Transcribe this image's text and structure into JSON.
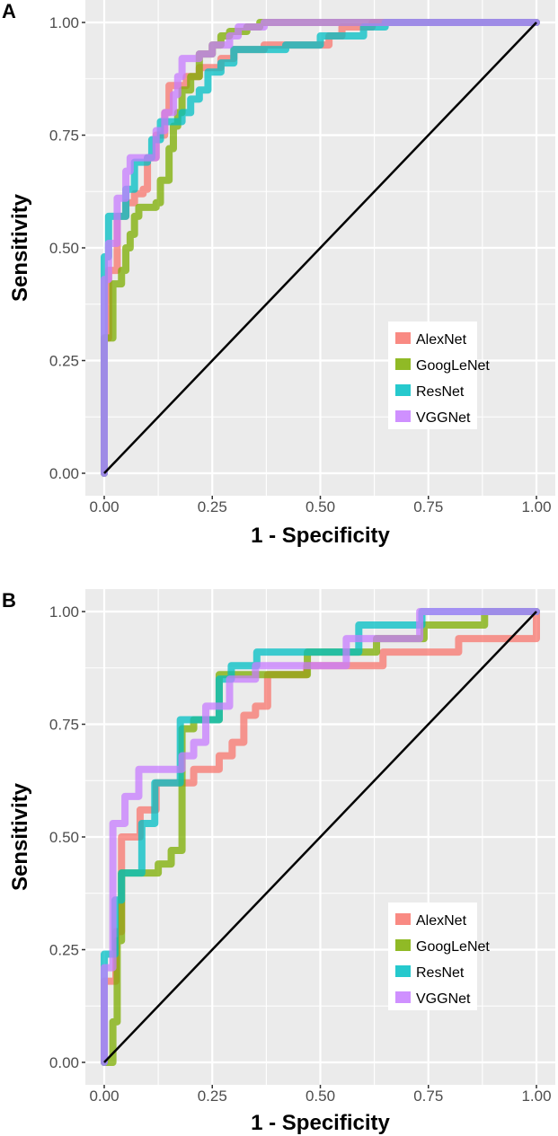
{
  "chart_data": [
    {
      "type": "line",
      "panel_label": "A",
      "xlabel": "1 - Specificity",
      "ylabel": "Sensitivity",
      "xlim": [
        0,
        1
      ],
      "ylim": [
        0,
        1
      ],
      "xticks": [
        "0.00",
        "0.25",
        "0.50",
        "0.75",
        "1.00"
      ],
      "yticks": [
        "0.00",
        "0.25",
        "0.50",
        "0.75",
        "1.00"
      ],
      "grid": true,
      "legend_position": "bottom-right",
      "reference_line": [
        [
          0,
          0
        ],
        [
          1,
          1
        ]
      ],
      "series": [
        {
          "name": "AlexNet",
          "color": "#F8766D",
          "points": [
            [
              0,
              0
            ],
            [
              0,
              0.3
            ],
            [
              0.01,
              0.45
            ],
            [
              0.03,
              0.5
            ],
            [
              0.03,
              0.57
            ],
            [
              0.05,
              0.6
            ],
            [
              0.07,
              0.62
            ],
            [
              0.09,
              0.63
            ],
            [
              0.1,
              0.7
            ],
            [
              0.12,
              0.75
            ],
            [
              0.14,
              0.8
            ],
            [
              0.15,
              0.86
            ],
            [
              0.17,
              0.86
            ],
            [
              0.19,
              0.88
            ],
            [
              0.22,
              0.9
            ],
            [
              0.27,
              0.92
            ],
            [
              0.3,
              0.94
            ],
            [
              0.37,
              0.95
            ],
            [
              0.52,
              0.97
            ],
            [
              0.55,
              0.99
            ],
            [
              0.62,
              1
            ],
            [
              1,
              1
            ]
          ]
        },
        {
          "name": "GoogLeNet",
          "color": "#7CAE00",
          "points": [
            [
              0,
              0
            ],
            [
              0,
              0.3
            ],
            [
              0.02,
              0.32
            ],
            [
              0.02,
              0.42
            ],
            [
              0.04,
              0.45
            ],
            [
              0.05,
              0.5
            ],
            [
              0.06,
              0.53
            ],
            [
              0.07,
              0.57
            ],
            [
              0.08,
              0.59
            ],
            [
              0.12,
              0.6
            ],
            [
              0.13,
              0.65
            ],
            [
              0.15,
              0.72
            ],
            [
              0.16,
              0.77
            ],
            [
              0.17,
              0.8
            ],
            [
              0.18,
              0.85
            ],
            [
              0.2,
              0.88
            ],
            [
              0.22,
              0.93
            ],
            [
              0.25,
              0.95
            ],
            [
              0.27,
              0.97
            ],
            [
              0.29,
              0.98
            ],
            [
              0.33,
              0.99
            ],
            [
              0.36,
              1
            ],
            [
              1,
              1
            ]
          ]
        },
        {
          "name": "ResNet",
          "color": "#00BFC4",
          "points": [
            [
              0,
              0
            ],
            [
              0,
              0.48
            ],
            [
              0.01,
              0.5
            ],
            [
              0.01,
              0.57
            ],
            [
              0.05,
              0.57
            ],
            [
              0.05,
              0.63
            ],
            [
              0.07,
              0.69
            ],
            [
              0.1,
              0.7
            ],
            [
              0.11,
              0.74
            ],
            [
              0.13,
              0.78
            ],
            [
              0.18,
              0.8
            ],
            [
              0.2,
              0.83
            ],
            [
              0.22,
              0.85
            ],
            [
              0.24,
              0.89
            ],
            [
              0.27,
              0.91
            ],
            [
              0.3,
              0.94
            ],
            [
              0.39,
              0.94
            ],
            [
              0.42,
              0.95
            ],
            [
              0.5,
              0.97
            ],
            [
              0.6,
              0.99
            ],
            [
              0.65,
              1
            ],
            [
              1,
              1
            ]
          ]
        },
        {
          "name": "VGGNet",
          "color": "#C77CFF",
          "points": [
            [
              0,
              0
            ],
            [
              0,
              0.43
            ],
            [
              0.01,
              0.51
            ],
            [
              0.03,
              0.61
            ],
            [
              0.05,
              0.67
            ],
            [
              0.06,
              0.7
            ],
            [
              0.1,
              0.7
            ],
            [
              0.12,
              0.76
            ],
            [
              0.14,
              0.8
            ],
            [
              0.16,
              0.84
            ],
            [
              0.17,
              0.88
            ],
            [
              0.18,
              0.92
            ],
            [
              0.22,
              0.93
            ],
            [
              0.25,
              0.95
            ],
            [
              0.29,
              0.97
            ],
            [
              0.31,
              0.99
            ],
            [
              0.37,
              1
            ],
            [
              1,
              1
            ]
          ]
        }
      ]
    },
    {
      "type": "line",
      "panel_label": "B",
      "xlabel": "1 - Specificity",
      "ylabel": "Sensitivity",
      "xlim": [
        0,
        1
      ],
      "ylim": [
        0,
        1
      ],
      "xticks": [
        "0.00",
        "0.25",
        "0.50",
        "0.75",
        "1.00"
      ],
      "yticks": [
        "0.00",
        "0.25",
        "0.50",
        "0.75",
        "1.00"
      ],
      "grid": true,
      "legend_position": "bottom-right",
      "reference_line": [
        [
          0,
          0
        ],
        [
          1,
          1
        ]
      ],
      "series": [
        {
          "name": "AlexNet",
          "color": "#F8766D",
          "points": [
            [
              0,
              0
            ],
            [
              0,
              0.18
            ],
            [
              0.027,
              0.18
            ],
            [
              0.027,
              0.29
            ],
            [
              0.04,
              0.29
            ],
            [
              0.04,
              0.5
            ],
            [
              0.06,
              0.5
            ],
            [
              0.083,
              0.56
            ],
            [
              0.12,
              0.59
            ],
            [
              0.12,
              0.62
            ],
            [
              0.207,
              0.62
            ],
            [
              0.207,
              0.65
            ],
            [
              0.266,
              0.68
            ],
            [
              0.296,
              0.71
            ],
            [
              0.323,
              0.77
            ],
            [
              0.35,
              0.79
            ],
            [
              0.378,
              0.86
            ],
            [
              0.468,
              0.88
            ],
            [
              0.645,
              0.91
            ],
            [
              0.82,
              0.94
            ],
            [
              1,
              0.94
            ],
            [
              1,
              1
            ]
          ]
        },
        {
          "name": "GoogLeNet",
          "color": "#7CAE00",
          "points": [
            [
              0,
              0
            ],
            [
              0.02,
              0.09
            ],
            [
              0.03,
              0.27
            ],
            [
              0.04,
              0.27
            ],
            [
              0.04,
              0.42
            ],
            [
              0.125,
              0.42
            ],
            [
              0.125,
              0.44
            ],
            [
              0.155,
              0.47
            ],
            [
              0.18,
              0.47
            ],
            [
              0.18,
              0.74
            ],
            [
              0.207,
              0.76
            ],
            [
              0.266,
              0.86
            ],
            [
              0.47,
              0.86
            ],
            [
              0.47,
              0.91
            ],
            [
              0.63,
              0.91
            ],
            [
              0.63,
              0.94
            ],
            [
              0.74,
              0.94
            ],
            [
              0.74,
              0.97
            ],
            [
              0.88,
              0.97
            ],
            [
              0.88,
              1
            ],
            [
              1,
              1
            ]
          ]
        },
        {
          "name": "ResNet",
          "color": "#00BFC4",
          "points": [
            [
              0,
              0
            ],
            [
              0,
              0.24
            ],
            [
              0.025,
              0.24
            ],
            [
              0.025,
              0.36
            ],
            [
              0.04,
              0.36
            ],
            [
              0.04,
              0.42
            ],
            [
              0.087,
              0.42
            ],
            [
              0.087,
              0.53
            ],
            [
              0.117,
              0.53
            ],
            [
              0.117,
              0.62
            ],
            [
              0.176,
              0.62
            ],
            [
              0.176,
              0.76
            ],
            [
              0.266,
              0.76
            ],
            [
              0.266,
              0.85
            ],
            [
              0.294,
              0.85
            ],
            [
              0.294,
              0.88
            ],
            [
              0.353,
              0.88
            ],
            [
              0.353,
              0.91
            ],
            [
              0.589,
              0.91
            ],
            [
              0.589,
              0.97
            ],
            [
              0.735,
              0.97
            ],
            [
              0.735,
              1
            ],
            [
              1,
              1
            ]
          ]
        },
        {
          "name": "VGGNet",
          "color": "#C77CFF",
          "points": [
            [
              0,
              0
            ],
            [
              0,
              0.21
            ],
            [
              0.02,
              0.21
            ],
            [
              0.02,
              0.53
            ],
            [
              0.048,
              0.53
            ],
            [
              0.048,
              0.59
            ],
            [
              0.08,
              0.59
            ],
            [
              0.08,
              0.65
            ],
            [
              0.18,
              0.65
            ],
            [
              0.18,
              0.68
            ],
            [
              0.207,
              0.68
            ],
            [
              0.207,
              0.71
            ],
            [
              0.235,
              0.71
            ],
            [
              0.235,
              0.79
            ],
            [
              0.29,
              0.79
            ],
            [
              0.29,
              0.85
            ],
            [
              0.35,
              0.85
            ],
            [
              0.35,
              0.88
            ],
            [
              0.56,
              0.88
            ],
            [
              0.56,
              0.94
            ],
            [
              0.73,
              0.94
            ],
            [
              0.73,
              1
            ],
            [
              1,
              1
            ]
          ]
        }
      ]
    }
  ]
}
